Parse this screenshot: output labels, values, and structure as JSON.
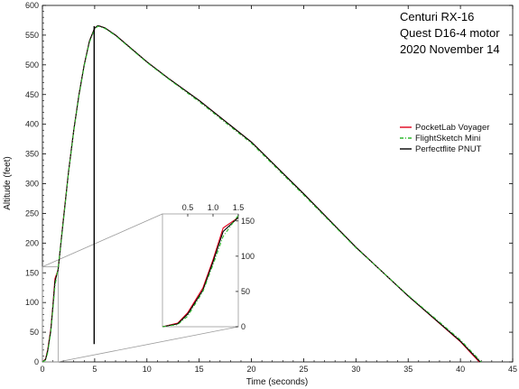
{
  "chart_data": {
    "type": "line",
    "title_lines": [
      "Centuri RX-16",
      "Quest D16-4 motor",
      "2020 November 14"
    ],
    "xlabel": "Time (seconds)",
    "ylabel": "Altitude (feet)",
    "xlim": [
      0,
      45
    ],
    "ylim": [
      0,
      600
    ],
    "x_ticks": [
      "0",
      "5",
      "10",
      "15",
      "20",
      "25",
      "30",
      "35",
      "40",
      "45"
    ],
    "y_ticks": [
      "0",
      "50",
      "100",
      "150",
      "200",
      "250",
      "300",
      "350",
      "400",
      "450",
      "500",
      "550",
      "600"
    ],
    "legend_position": "right",
    "colors": {
      "pocketlab": "#e0001b",
      "flightsketch": "#2eb82e",
      "pnut": "#000000",
      "inset_box": "#9a9a9a"
    },
    "series": [
      {
        "name": "PocketLab Voyager",
        "style": "solid",
        "x": [
          0,
          0.3,
          0.5,
          0.8,
          1.0,
          1.2,
          1.5,
          2.0,
          2.5,
          3.0,
          3.5,
          4.0,
          4.5,
          5.0,
          5.3,
          5.5,
          6.0,
          7.0,
          8.0,
          10.0,
          12.0,
          15.0,
          20.0,
          25.0,
          30.0,
          35.0,
          40.0,
          41.8
        ],
        "y": [
          0,
          5,
          20,
          55,
          95,
          140,
          155,
          240,
          320,
          390,
          450,
          500,
          540,
          562,
          566,
          565,
          562,
          550,
          535,
          505,
          478,
          440,
          370,
          283,
          193,
          111,
          34,
          0
        ]
      },
      {
        "name": "FlightSketch Mini",
        "style": "dash-dot",
        "x": [
          0,
          0.3,
          0.5,
          0.8,
          1.0,
          1.2,
          1.5,
          2.0,
          2.5,
          3.0,
          3.5,
          4.0,
          4.5,
          5.0,
          5.3,
          5.5,
          6.0,
          7.0,
          8.0,
          10.0,
          12.0,
          15.0,
          20.0,
          25.0,
          30.0,
          35.0,
          40.0,
          42.0
        ],
        "y": [
          0,
          3,
          15,
          50,
          88,
          128,
          158,
          236,
          318,
          388,
          448,
          498,
          538,
          560,
          565,
          564,
          561,
          549,
          534,
          504,
          477,
          438,
          368,
          281,
          192,
          112,
          37,
          0
        ]
      },
      {
        "name": "Perfectflite PNUT",
        "style": "solid",
        "x": [
          0,
          0.3,
          0.5,
          0.8,
          1.0,
          1.2,
          1.5,
          2.0,
          2.5,
          3.0,
          3.5,
          4.0,
          4.5,
          5.0,
          5.3,
          5.5,
          6.0,
          7.0,
          8.0,
          10.0,
          12.0,
          15.0,
          20.0,
          25.0,
          30.0,
          35.0,
          40.0,
          41.9
        ],
        "y": [
          0,
          4,
          18,
          52,
          92,
          135,
          155,
          238,
          320,
          390,
          450,
          500,
          540,
          562,
          566,
          565,
          562,
          550,
          535,
          505,
          478,
          440,
          370,
          283,
          193,
          111,
          35,
          0
        ]
      }
    ],
    "spike": {
      "x": 4.95,
      "y_from": 30,
      "y_to": 565
    },
    "inset": {
      "xlim": [
        0,
        1.5
      ],
      "ylim": [
        0,
        160
      ],
      "x_ticks": [
        "0.5",
        "1.0",
        "1.5"
      ],
      "y_ticks": [
        "0",
        "50",
        "100",
        "150"
      ],
      "source_region": {
        "x": [
          0,
          1.5
        ],
        "y": [
          0,
          160
        ]
      }
    }
  }
}
